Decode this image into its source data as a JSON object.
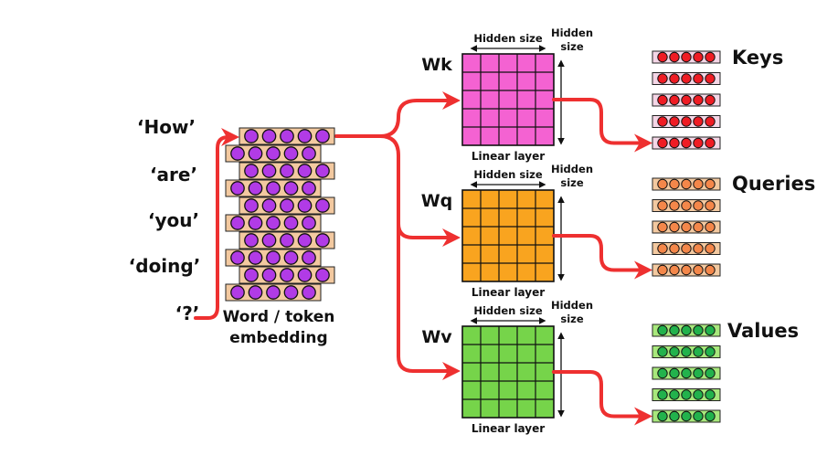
{
  "tokens": [
    "‘How’",
    "‘are’",
    "‘you’",
    "‘doing’",
    "‘?’"
  ],
  "embedding_caption": [
    "Word / token",
    "embedding"
  ],
  "embedding": {
    "rows": 10,
    "dots_per_row": 5,
    "dot_color": "#b13be6",
    "row_bg": "#f3c9a0"
  },
  "arrow_color": "#ee3030",
  "projections": [
    {
      "id": "keys",
      "weight_label": "Wk",
      "top_label": "Hidden size",
      "side_label": [
        "Hidden",
        "size"
      ],
      "bottom_label": "Linear layer",
      "matrix_color": "#f462d2",
      "output_label": "Keys",
      "output_dot_color": "#ef1c24",
      "output_bg": "#f4d6e6",
      "output_rows": 5,
      "output_dots": 5
    },
    {
      "id": "queries",
      "weight_label": "Wq",
      "top_label": "Hidden size",
      "side_label": [
        "Hidden",
        "size"
      ],
      "bottom_label": "Linear layer",
      "matrix_color": "#f9a41f",
      "output_label": "Queries",
      "output_dot_color": "#f4874a",
      "output_bg": "#f3c9a0",
      "output_rows": 5,
      "output_dots": 5
    },
    {
      "id": "values",
      "weight_label": "Wv",
      "top_label": "Hidden size",
      "side_label": [
        "Hidden",
        "size"
      ],
      "bottom_label": "Linear layer",
      "matrix_color": "#76d44a",
      "output_label": "Values",
      "output_dot_color": "#22b24c",
      "output_bg": "#a8e87c",
      "output_rows": 5,
      "output_dots": 5
    }
  ]
}
